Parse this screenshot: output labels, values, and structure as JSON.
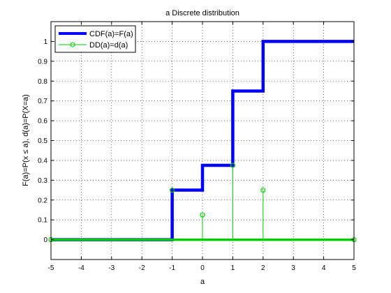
{
  "chart_data": {
    "type": "line",
    "title": "a Discrete distribution",
    "xlabel": "a",
    "ylabel": "F(a)=P(x ≤ a), d(a)=P(X=a)",
    "xlim": [
      -5,
      5
    ],
    "ylim": [
      -0.1,
      1.1
    ],
    "xticks": [
      -5,
      -4,
      -3,
      -2,
      -1,
      0,
      1,
      2,
      3,
      4,
      5
    ],
    "yticks": [
      0,
      0.1,
      0.2,
      0.3,
      0.4,
      0.5,
      0.6,
      0.7,
      0.8,
      0.9,
      1
    ],
    "ytick_labels": [
      "0",
      "0.1",
      "0.2",
      "0.3",
      "0.4",
      "0.5",
      "0.6",
      "0.7",
      "0.8",
      "0.9",
      "1"
    ],
    "grid": true,
    "legend_position": "top-left",
    "series": [
      {
        "name": "CDF(a)=F(a)",
        "style": "step",
        "color": "#0000ff",
        "x": [
          -5,
          -1,
          -1,
          0,
          0,
          1,
          1,
          2,
          2,
          5
        ],
        "y": [
          0,
          0,
          0.25,
          0.25,
          0.375,
          0.375,
          0.75,
          0.75,
          1,
          1
        ]
      },
      {
        "name": "DD(a)=d(a)",
        "style": "stem",
        "color": "#00cc00",
        "x": [
          -5,
          -1,
          0,
          1,
          2,
          5
        ],
        "y": [
          0,
          0.25,
          0.125,
          0.375,
          0.25,
          0
        ]
      }
    ]
  }
}
